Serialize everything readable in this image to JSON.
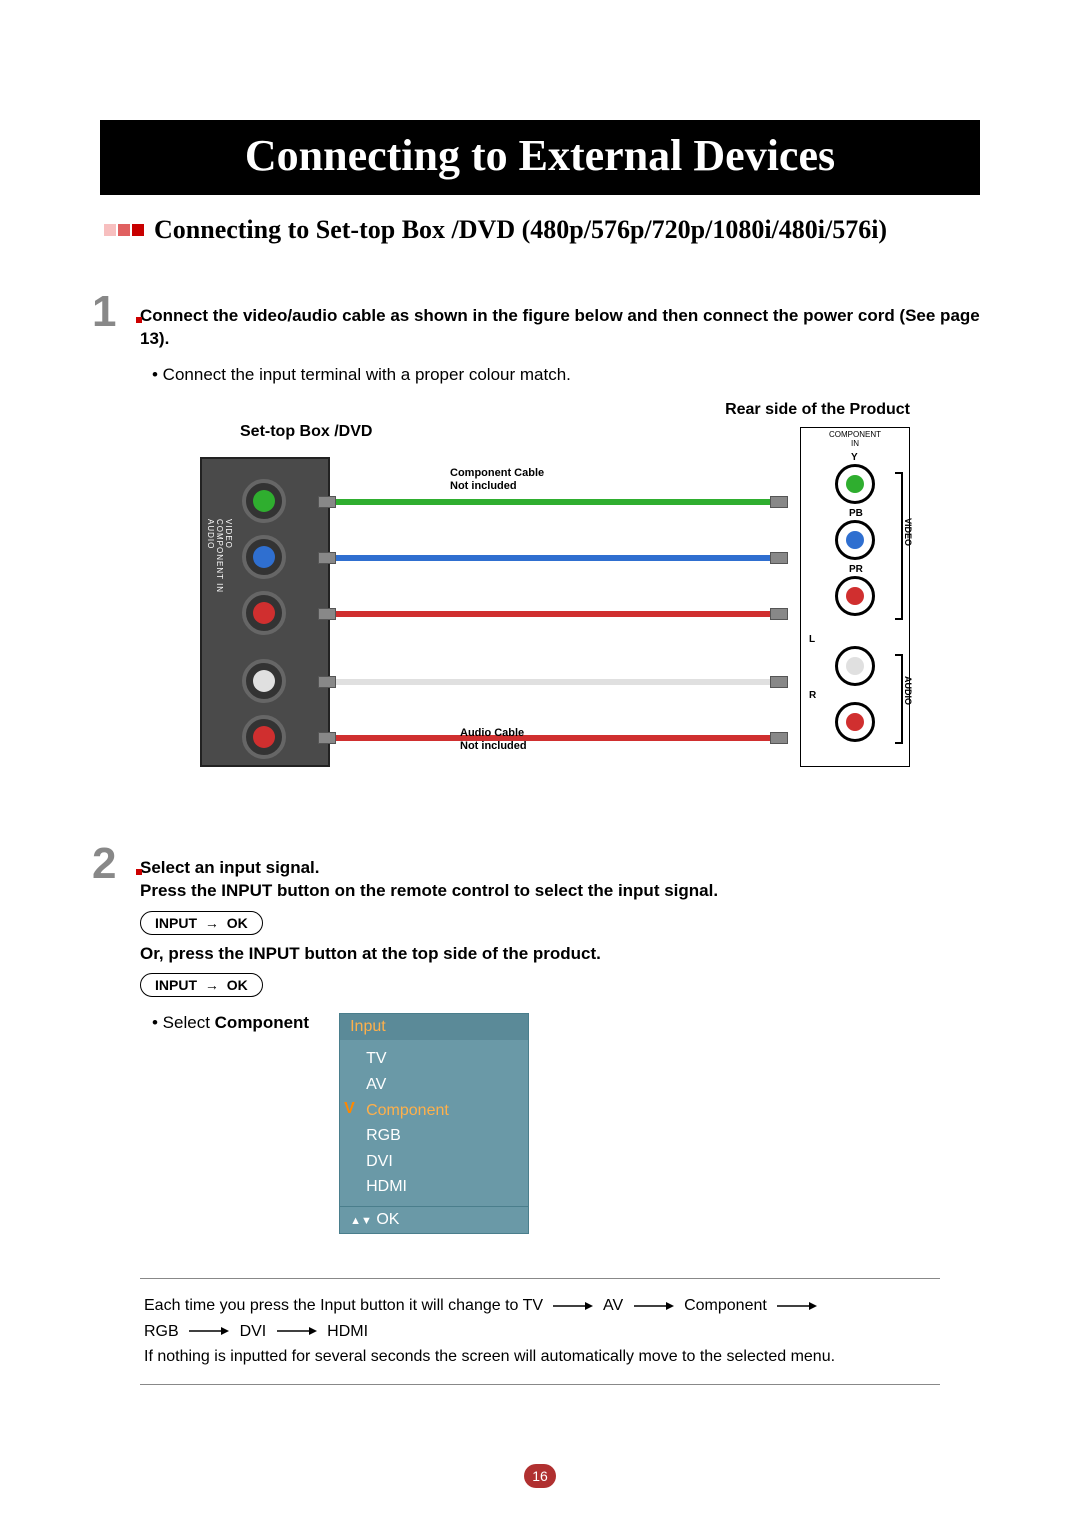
{
  "title": "Connecting to External Devices",
  "subtitle": "Connecting to Set-top Box /DVD (480p/576p/720p/1080i/480i/576i)",
  "subtitle_marker_colors": [
    "#f7bfbf",
    "#e06060",
    "#c80000"
  ],
  "step1": {
    "num": "1",
    "bold_a": "Connect the video/audio cable as shown in the figure below and then connect the power cord (See page 13).",
    "bullet": "• Connect the input terminal with a proper colour match.",
    "dvd_label": "Set-top Box /DVD",
    "rear_label": "Rear side of the Product",
    "component_cable_label": "Component Cable\nNot included",
    "audio_cable_label": "Audio Cable\nNot included",
    "jack_colors": {
      "y": "#2fae2f",
      "pb": "#2f6fd0",
      "pr": "#d02f2f",
      "l": "#e0e0e0",
      "r": "#d02f2f"
    },
    "product_header": "COMPONENT\nIN",
    "product_labels": {
      "y": "Y",
      "pb": "PB",
      "pr": "PR",
      "l": "L",
      "r": "R",
      "video": "VIDEO",
      "audio": "AUDIO"
    },
    "dvd_side_labels": {
      "video": "VIDEO",
      "component": "COMPONENT IN",
      "audio": "AUDIO"
    }
  },
  "step2": {
    "num": "2",
    "bold_a": "Select an input signal.",
    "bold_b": "Press the INPUT button on the remote control to select the input signal.",
    "pill_input": "INPUT",
    "pill_ok": "OK",
    "bold_c": "Or, press the INPUT button at the top side of the product.",
    "select_text_a": "• Select ",
    "select_text_b": "Component",
    "osd": {
      "header": "Input",
      "items": [
        "TV",
        "AV",
        "Component",
        "RGB",
        "DVI",
        "HDMI"
      ],
      "selected_index": 2,
      "ok": "OK",
      "colors": {
        "header_bg": "#5b8a98",
        "header_fg": "#ffb04a",
        "body_bg": "#6a99a7",
        "body_fg": "#ffffff",
        "sel_fg": "#ffb04a",
        "border": "#4a7e8c"
      }
    }
  },
  "note": {
    "line1_a": "Each time you press the Input button it will change to TV",
    "seq": [
      "AV",
      "Component",
      "RGB",
      "DVI",
      "HDMI"
    ],
    "line2": "If nothing is inputted for several seconds the screen will automatically move to the selected menu."
  },
  "page_number": "16"
}
